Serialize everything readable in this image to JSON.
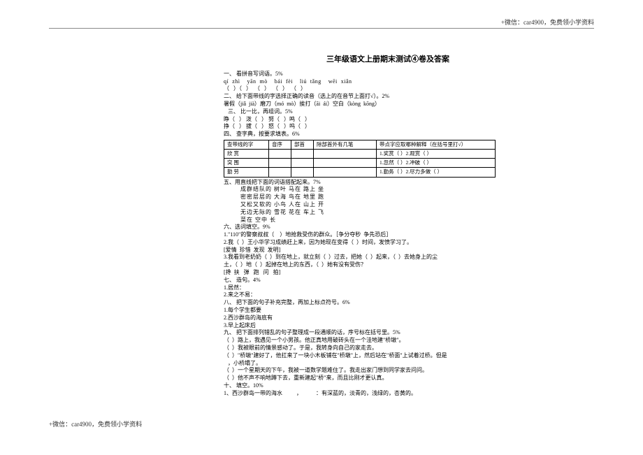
{
  "header_note": "+微信：car4900，免费领小学资料",
  "footer_note": "+微信：car4900，免费领小学资料",
  "title": "三年级语文上册期末测试④卷及答案",
  "sec1_head": "一、 看拼音写词语。5%",
  "sec1_pinyin": "qí  zhì    yān  mò    bái  fèi    liú  tǎng    wēi  xiǎn",
  "sec1_brackets": "（   ）（   ）  （   ）  （   ）  （   ）",
  "sec2_head": "二、 给下面带线的字选择正确的读音（选上的在音节上面打√）。2%",
  "sec2_line": "暑假（jiǎ  jià）磨刀（mó  mò）挨打（āi  ái）空白（kòng  kōng）",
  "sec3_head": "   三、 比一比，再组词。5%",
  "sec3_row1": "睁（   ） 泼（   ） 努（   ）鸣（   ）",
  "sec3_row2": "挣（   ） 拔（   ） 怒（   ）呜（   ）",
  "sec4_head": "四、 查字典，按要求填表。6%",
  "dict": {
    "headers": [
      "查带线的字",
      "音序",
      "部首",
      "除部首外有几笔",
      "带点字应取哪种解释（在括号里打√）"
    ],
    "rows": [
      [
        "欣  赏",
        "",
        "",
        "",
        "1.奖赏（ ）2.观赏（ ）"
      ],
      [
        "突  围",
        "",
        "",
        "",
        "1.忽然（ ）2.冲破（ ）"
      ],
      [
        "勤  劳",
        "",
        "",
        "",
        "1.勤务（ ）2.尽力多做（ ）"
      ]
    ],
    "col_widths": [
      "64px",
      "32px",
      "32px",
      "90px",
      "170px"
    ]
  },
  "sec5_head": "五、用直线把下面的词语搭配起来。7%",
  "match": [
    "成群结队的    树叶    马在    路上   坐",
    "密密层层的    大海    鸟在    地里   跑",
    "又松又软的    小鸟    人在    山上   开",
    "无边无际的    雪花    花在    车上   飞",
    "                          菜在    空中   长"
  ],
  "sec6_head": "六、选词填空。9%",
  "sec6_l1": "1.\"110\"的警察叔叔（    ）地抢救受伤的群众。［争分夺秒  争先恐后］",
  "sec6_l2": "2.我（  ）王小华学习成绩赶上来，因为她现在变得（  ）时间，发愤学习了。",
  "sec6_l3": "[爱情  珍惜  发现  发明]",
  "sec6_l4": "3.我看到老奶奶（  ）到在地上，就立刻（  ）过去，把她（  ）起来，（  ）去她身上的尘",
  "sec6_l5": "土，（  ）地（  ）起掉在地上的东西，（  ）她有没有受伤？",
  "sec6_l6": "[搀  扶   弹   跑   问   拍]",
  "sec7_head": "七、 造句。4%",
  "sec7_l1": "1.居然：",
  "sec7_l2": "2.来之不易：",
  "sec8_head": "八、 把下面的句子补充完整，再加上标点符号。6%",
  "sec8_l1": "1.每个学生都要",
  "sec8_l2": "2.西沙群岛的海底有",
  "sec8_l3": "3.早上起床后",
  "sec9_head": "九、 把下面排列错乱的句子整理成一段通顺的话，序号标在括号里。5%",
  "sec9_l1": "（  ）路上，我遇见一个小男孩。他正真地用破砖头在一个洼地建\"桥墩\"。",
  "sec9_l2": "（  ）我被眼前的情景感动了。于是，我转身向自己的家走去。",
  "sec9_l3": "（  ）\"桥墩\"建好了，他扛来了一块小木板铺在\"桥墩\"上，然后站在\"桥面\"上试着过桥。但是",
  "sec9_l4": "   ，小桥塌了。",
  "sec9_l5": "（  ）一个星期天的下午，我被一道数学题难住了。我走出家门想到同学家去问问。",
  "sec9_l6": "（  ）他不声不响地蹲下去，重新建起\"桥\"来，而且比刚才更认真。",
  "sec10_head": "十、 填空。10%",
  "sec10_l1": "1、西沙群岛一带的海水          ，          ：有深蓝的，淡青的，浅绿的，杏黄的。"
}
